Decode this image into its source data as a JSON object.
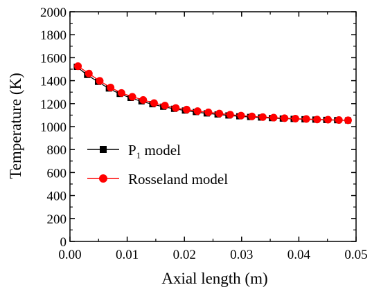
{
  "chart_data": {
    "type": "line",
    "title": "",
    "xlabel": "Axial length (m)",
    "ylabel": "Temperature (K)",
    "xlim": [
      0.0,
      0.05
    ],
    "ylim": [
      0,
      2000
    ],
    "x_tick_labels": [
      "0.00",
      "0.01",
      "0.02",
      "0.03",
      "0.04",
      "0.05"
    ],
    "y_tick_labels": [
      "0",
      "200",
      "400",
      "600",
      "800",
      "1000",
      "1200",
      "1400",
      "1600",
      "1800",
      "2000"
    ],
    "grid": false,
    "legend_position": "center-left",
    "legend": [
      {
        "label_main": "P",
        "label_sub": "1",
        "label_rest": " model"
      },
      {
        "label_main": "Rosseland model",
        "label_sub": "",
        "label_rest": ""
      }
    ],
    "series": [
      {
        "name": "P1 model",
        "marker": "square",
        "color": "#000000",
        "x": [
          0.0012,
          0.003,
          0.0049,
          0.0068,
          0.0087,
          0.0106,
          0.0125,
          0.0144,
          0.0163,
          0.0182,
          0.0201,
          0.022,
          0.0239,
          0.0258,
          0.0277,
          0.0296,
          0.0315,
          0.0334,
          0.0353,
          0.0372,
          0.0391,
          0.041,
          0.0429,
          0.0448,
          0.0467,
          0.0486
        ],
        "y": [
          1521,
          1450,
          1390,
          1332,
          1285,
          1250,
          1220,
          1195,
          1173,
          1155,
          1140,
          1127,
          1115,
          1106,
          1097,
          1090,
          1084,
          1079,
          1074,
          1070,
          1067,
          1064,
          1061,
          1058,
          1056,
          1054
        ]
      },
      {
        "name": "Rosseland model",
        "marker": "circle",
        "color": "#ff0000",
        "x": [
          0.0014,
          0.0033,
          0.0052,
          0.0071,
          0.009,
          0.0109,
          0.0128,
          0.0147,
          0.0166,
          0.0185,
          0.0204,
          0.0223,
          0.0242,
          0.0261,
          0.028,
          0.0299,
          0.0318,
          0.0337,
          0.0356,
          0.0375,
          0.0394,
          0.0413,
          0.0432,
          0.0451,
          0.047,
          0.0486
        ],
        "y": [
          1526,
          1462,
          1398,
          1340,
          1293,
          1260,
          1232,
          1205,
          1183,
          1162,
          1148,
          1135,
          1124,
          1114,
          1104,
          1096,
          1089,
          1083,
          1078,
          1073,
          1069,
          1066,
          1062,
          1060,
          1057,
          1055
        ]
      }
    ]
  }
}
